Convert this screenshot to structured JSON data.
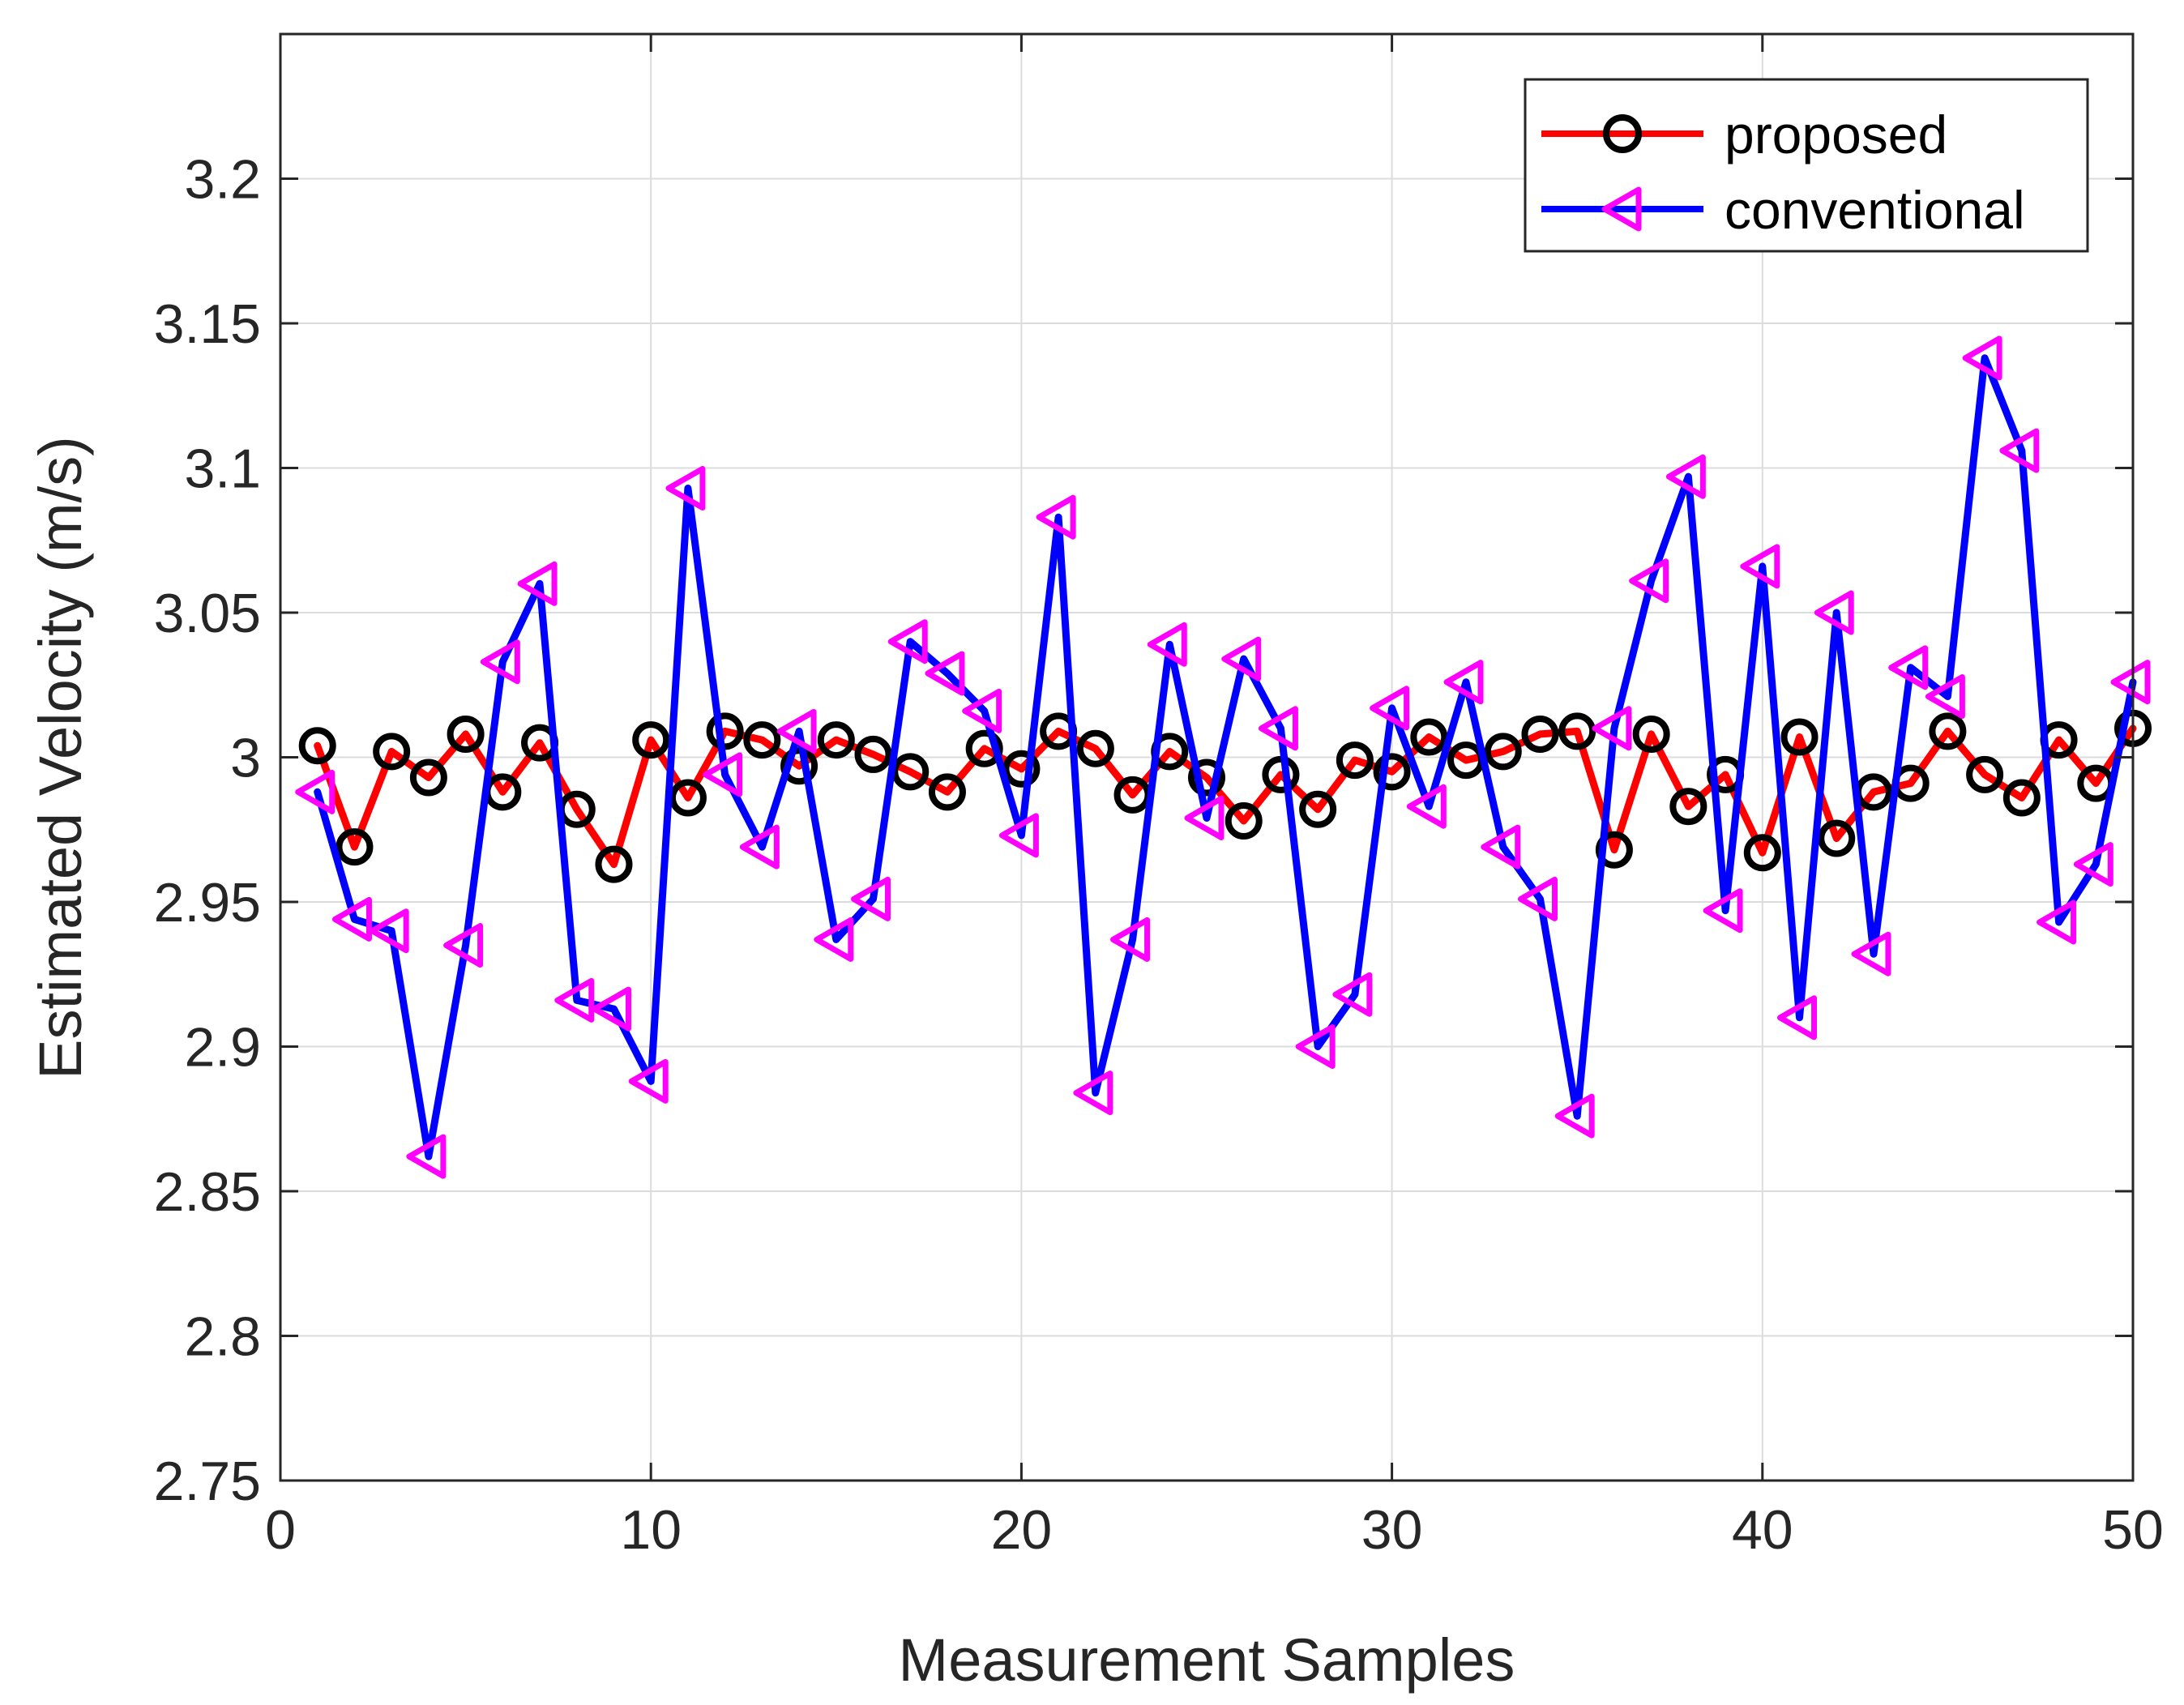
{
  "chart_data": {
    "type": "line",
    "title": "",
    "xlabel": "Measurement Samples",
    "ylabel": "Estimated Velocity (m/s)",
    "xlim": [
      0,
      50
    ],
    "ylim": [
      2.75,
      3.25
    ],
    "xticks": [
      0,
      10,
      20,
      30,
      40,
      50
    ],
    "xtick_labels": [
      "0",
      "10",
      "20",
      "30",
      "40",
      "50"
    ],
    "yticks": [
      2.75,
      2.8,
      2.85,
      2.9,
      2.95,
      3.0,
      3.05,
      3.1,
      3.15,
      3.2
    ],
    "ytick_labels": [
      "2.75",
      "2.8",
      "2.85",
      "2.9",
      "2.95",
      "3",
      "3.05",
      "3.1",
      "3.15",
      "3.2"
    ],
    "grid": true,
    "legend_position": "top-right",
    "x": [
      1,
      2,
      3,
      4,
      5,
      6,
      7,
      8,
      9,
      10,
      11,
      12,
      13,
      14,
      15,
      16,
      17,
      18,
      19,
      20,
      21,
      22,
      23,
      24,
      25,
      26,
      27,
      28,
      29,
      30,
      31,
      32,
      33,
      34,
      35,
      36,
      37,
      38,
      39,
      40,
      41,
      42,
      43,
      44,
      45,
      46,
      47,
      48,
      49,
      50
    ],
    "series": [
      {
        "name": "proposed",
        "line_color": "#ff0000",
        "marker": "circle",
        "marker_color": "#000000",
        "values": [
          3.004,
          2.969,
          3.002,
          2.993,
          3.008,
          2.988,
          3.005,
          2.982,
          2.963,
          3.006,
          2.986,
          3.009,
          3.006,
          2.997,
          3.006,
          3.001,
          2.995,
          2.988,
          3.003,
          2.996,
          3.009,
          3.003,
          2.987,
          3.002,
          2.993,
          2.978,
          2.994,
          2.982,
          2.999,
          2.995,
          3.007,
          2.999,
          3.002,
          3.008,
          3.009,
          2.968,
          3.008,
          2.983,
          2.994,
          2.967,
          3.007,
          2.972,
          2.988,
          2.991,
          3.009,
          2.994,
          2.986,
          3.006,
          2.991,
          3.01
        ]
      },
      {
        "name": "conventional",
        "line_color": "#0000ff",
        "marker": "triangle-left",
        "marker_color": "#ff00ff",
        "values": [
          2.988,
          2.944,
          2.94,
          2.862,
          2.935,
          3.033,
          3.06,
          2.916,
          2.913,
          2.888,
          3.093,
          2.994,
          2.969,
          3.009,
          2.937,
          2.951,
          3.04,
          3.029,
          3.016,
          2.973,
          3.083,
          2.884,
          2.937,
          3.039,
          2.979,
          3.034,
          3.01,
          2.9,
          2.918,
          3.017,
          2.983,
          3.026,
          2.969,
          2.951,
          2.876,
          3.01,
          3.061,
          3.097,
          2.947,
          3.066,
          2.91,
          3.05,
          2.932,
          3.031,
          3.021,
          3.138,
          3.106,
          2.943,
          2.963,
          3.026
        ]
      }
    ]
  }
}
